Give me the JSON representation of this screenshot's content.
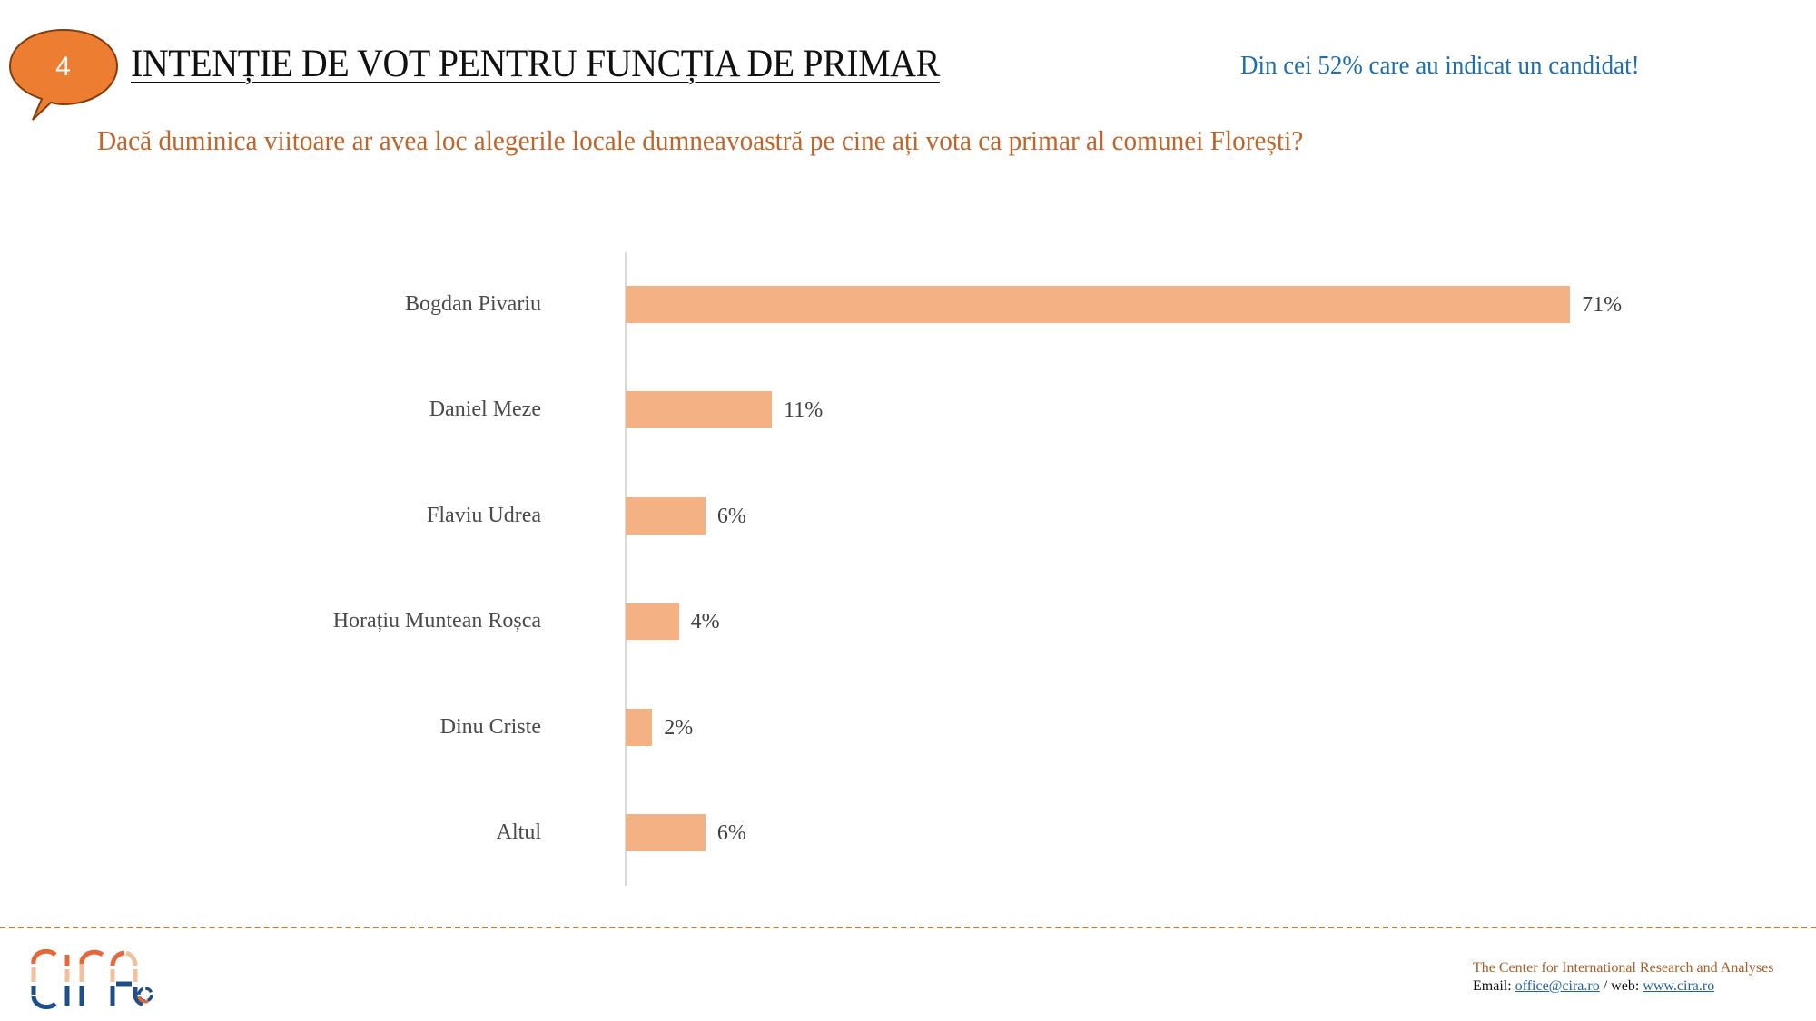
{
  "header": {
    "slide_number": "4",
    "title": "INTENȚIE DE VOT PENTRU FUNCȚIA DE PRIMAR",
    "note": "Din cei 52% care au indicat un candidat!",
    "question": "Dacă duminica viitoare ar avea loc alegerile locale dumneavoastră pe cine ați vota ca primar al comunei Florești?"
  },
  "colors": {
    "bubble_fill": "#ED7D31",
    "bubble_stroke": "#843C0C",
    "bar": "#F4B183",
    "note_text": "#1F6FAE",
    "question_text": "#C0652A",
    "axis": "#D9D9D9"
  },
  "chart_data": {
    "type": "bar",
    "orientation": "horizontal",
    "title": "INTENȚIE DE VOT PENTRU FUNCȚIA DE PRIMAR",
    "subtitle": "Dacă duminica viitoare ar avea loc alegerile locale dumneavoastră pe cine ați vota ca primar al comunei Florești?",
    "categories": [
      "Bogdan Pivariu",
      "Daniel Meze",
      "Flaviu Udrea",
      "Horațiu Muntean Roșca",
      "Dinu Criste",
      "Altul"
    ],
    "values": [
      71,
      11,
      6,
      4,
      2,
      6
    ],
    "labels": [
      "71%",
      "11%",
      "6%",
      "4%",
      "2%",
      "6%"
    ],
    "unit": "%",
    "xlabel": "",
    "ylabel": "",
    "xlim": [
      0,
      75
    ],
    "grid": false,
    "legend": null
  },
  "footer": {
    "logo_text": "cira",
    "org_name": "The Center for International Research and Analyses",
    "email_label": "Email: ",
    "email": "office@cira.ro",
    "separator": " / web: ",
    "web": "www.cira.ro"
  }
}
